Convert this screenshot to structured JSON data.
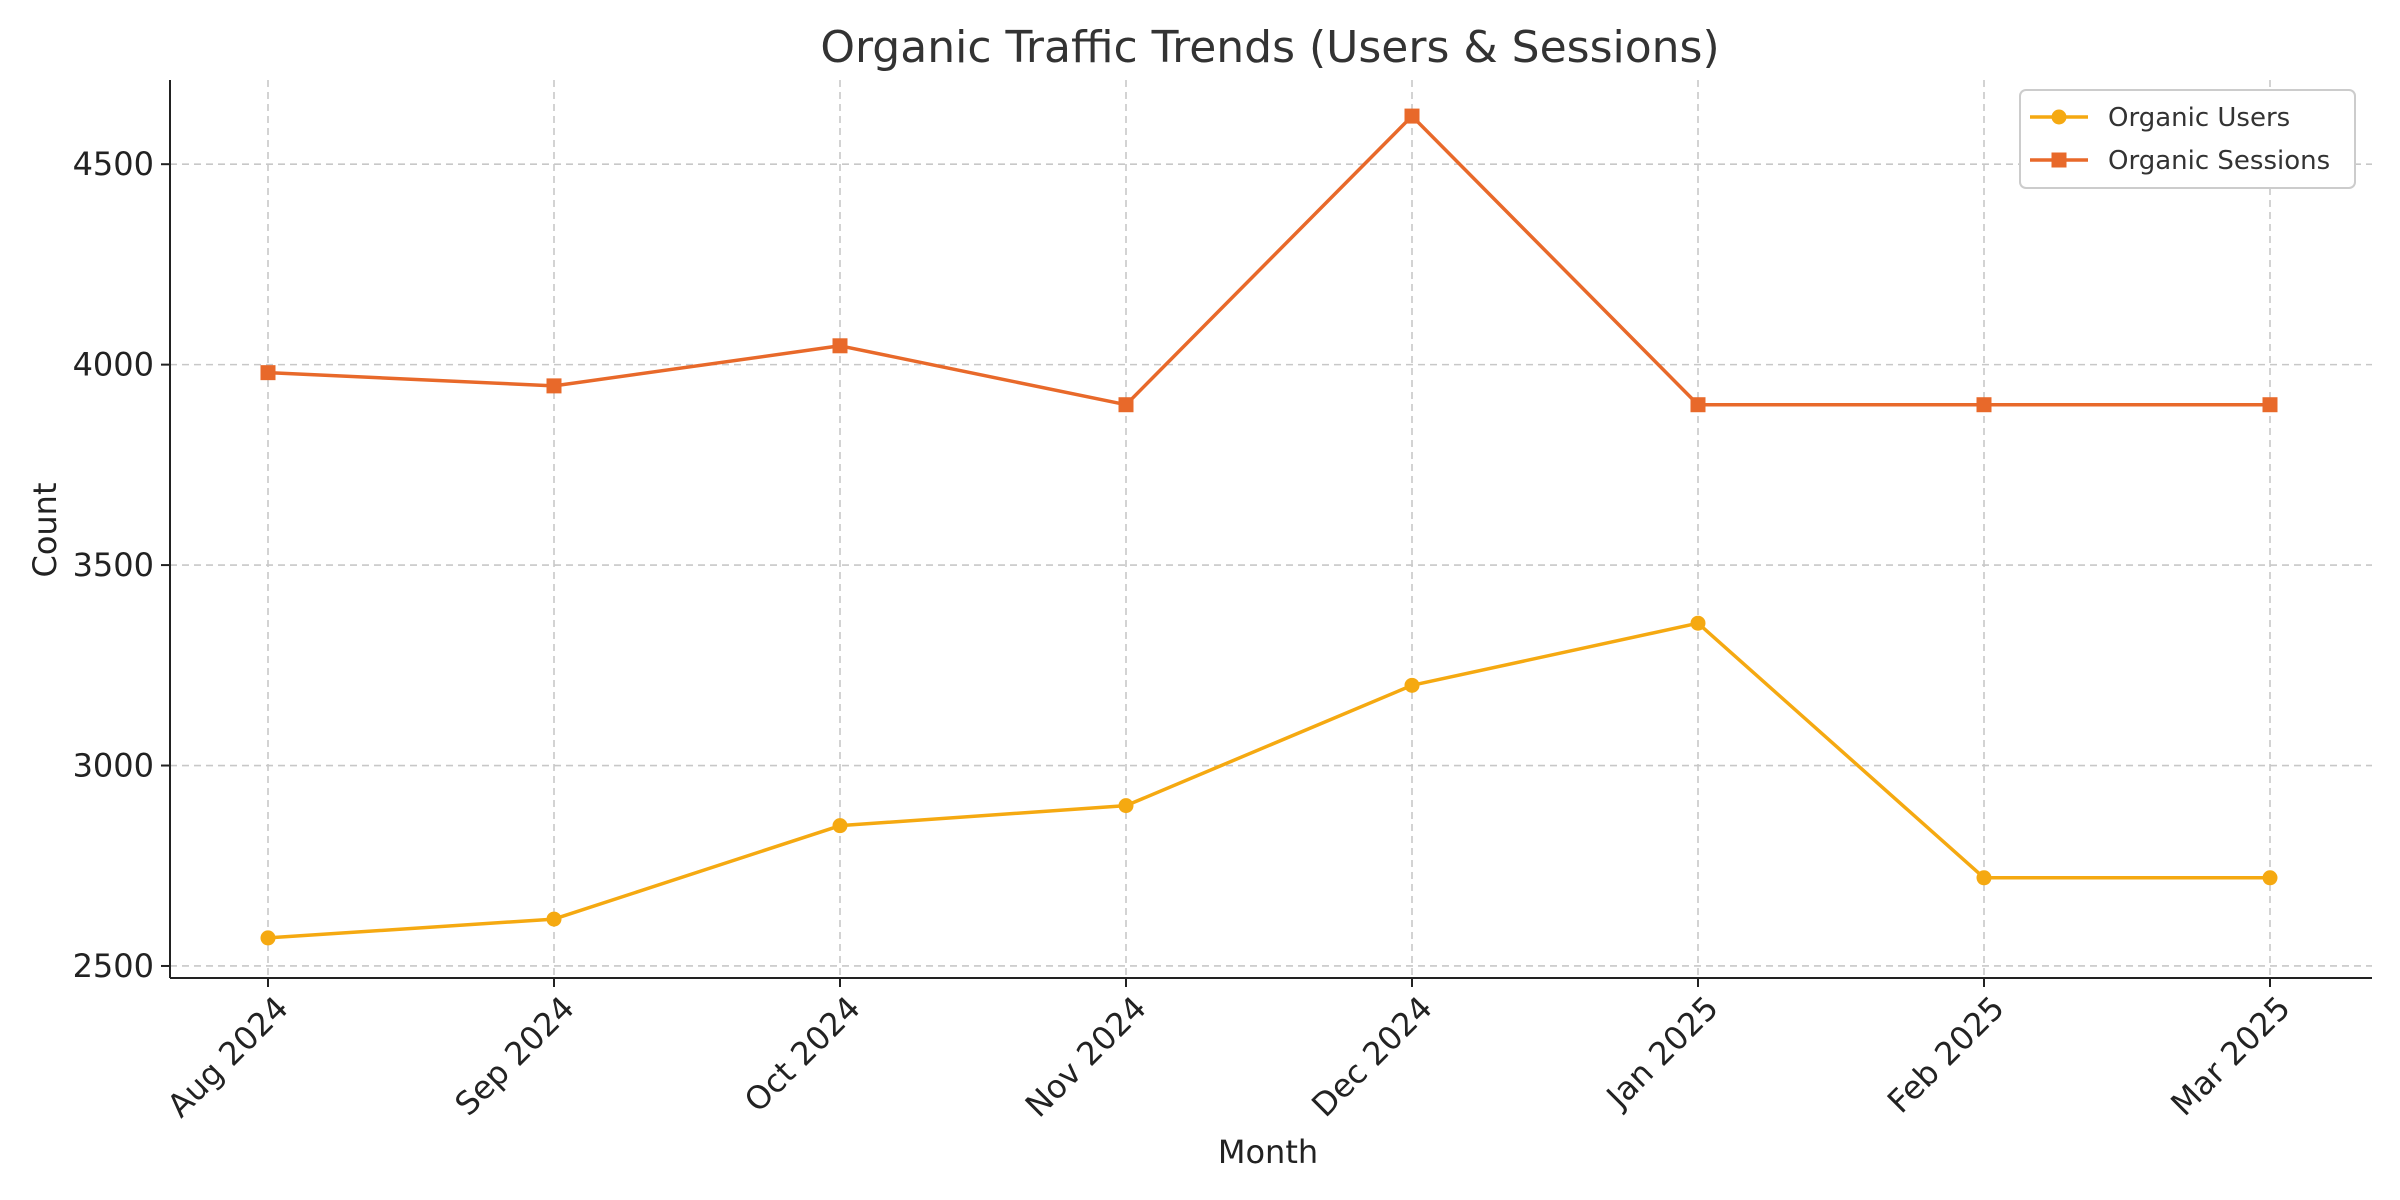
{
  "chart_data": {
    "type": "line",
    "title": "Organic Traffic Trends (Users & Sessions)",
    "xlabel": "Month",
    "ylabel": "Count",
    "categories": [
      "Aug 2024",
      "Sep 2024",
      "Oct 2024",
      "Nov 2024",
      "Dec 2024",
      "Jan 2025",
      "Feb 2025",
      "Mar 2025"
    ],
    "ylim": [
      2470,
      4710
    ],
    "yticks": [
      2500,
      3000,
      3500,
      4000,
      4500
    ],
    "grid": true,
    "legend_position": "top-right",
    "series": [
      {
        "name": "Organic Users",
        "color": "#F5A911",
        "marker": "circle",
        "values": [
          2570,
          2617,
          2850,
          2900,
          3200,
          3355,
          2720,
          2720
        ]
      },
      {
        "name": "Organic Sessions",
        "color": "#E8692A",
        "marker": "square",
        "values": [
          3980,
          3947,
          4047,
          3900,
          4620,
          3900,
          3900,
          3900
        ]
      }
    ]
  }
}
